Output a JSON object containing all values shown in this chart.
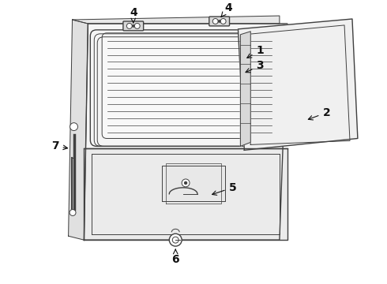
{
  "background_color": "#ffffff",
  "line_color": "#404040",
  "label_color": "#111111",
  "figsize": [
    4.9,
    3.6
  ],
  "dpi": 100,
  "labels": [
    {
      "text": "1",
      "xt": 330,
      "yt": 62,
      "xa": 310,
      "ya": 74
    },
    {
      "text": "2",
      "xt": 415,
      "yt": 142,
      "xa": 388,
      "ya": 152
    },
    {
      "text": "3",
      "xt": 330,
      "yt": 82,
      "xa": 308,
      "ya": 92
    },
    {
      "text": "4",
      "xt": 168,
      "yt": 14,
      "xa": 168,
      "ya": 28
    },
    {
      "text": "4",
      "xt": 290,
      "yt": 8,
      "xa": 278,
      "ya": 22
    },
    {
      "text": "5",
      "xt": 295,
      "yt": 238,
      "xa": 265,
      "ya": 248
    },
    {
      "text": "6",
      "xt": 222,
      "yt": 330,
      "xa": 222,
      "ya": 316
    },
    {
      "text": "7",
      "xt": 68,
      "yt": 185,
      "xa": 88,
      "ya": 188
    }
  ]
}
